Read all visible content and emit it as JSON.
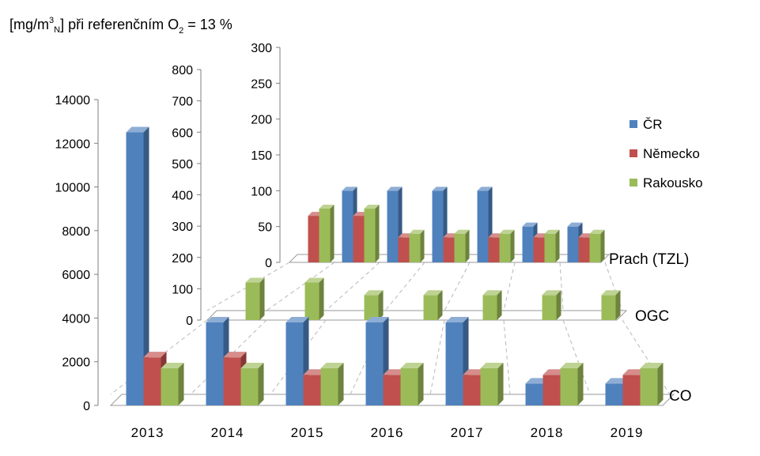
{
  "chart_data": {
    "type": "bar",
    "title": "[mg/m3N] při referenčním O2 = 13 %",
    "title_parts": {
      "pre": "[mg/m",
      "sup": "3",
      "sub": "N",
      "mid": "] při referenčním O",
      "sub2": "2",
      "post": " = 13 %"
    },
    "categories": [
      "2013",
      "2014",
      "2015",
      "2016",
      "2017",
      "2018",
      "2019"
    ],
    "legend_position": "right",
    "colors": {
      "ČR": "#4F81BD",
      "Německo": "#C0504D",
      "Rakousko": "#9BBB59"
    },
    "legend": [
      "ČR",
      "Německo",
      "Rakousko"
    ],
    "panels": [
      {
        "name": "Prach (TZL)",
        "ylim": [
          0,
          300
        ],
        "ticks": [
          "0",
          "50",
          "100",
          "150",
          "200",
          "250",
          "300"
        ],
        "series": [
          {
            "name": "ČR",
            "values": [
              null,
              100,
              100,
              100,
              100,
              50,
              50
            ]
          },
          {
            "name": "Německo",
            "values": [
              65,
              65,
              35,
              35,
              35,
              35,
              35
            ]
          },
          {
            "name": "Rakousko",
            "values": [
              75,
              75,
              40,
              40,
              40,
              40,
              40
            ]
          }
        ]
      },
      {
        "name": "OGC",
        "ylim": [
          0,
          800
        ],
        "ticks": [
          "0",
          "100",
          "200",
          "300",
          "400",
          "500",
          "600",
          "700",
          "800"
        ],
        "series": [
          {
            "name": "ČR",
            "values": [
              null,
              null,
              null,
              null,
              null,
              null,
              null
            ]
          },
          {
            "name": "Německo",
            "values": [
              null,
              null,
              null,
              null,
              null,
              null,
              null
            ]
          },
          {
            "name": "Rakousko",
            "values": [
              120,
              120,
              80,
              80,
              80,
              80,
              80
            ]
          }
        ]
      },
      {
        "name": "CO",
        "ylim": [
          0,
          14000
        ],
        "ticks": [
          "0",
          "2000",
          "4000",
          "6000",
          "8000",
          "10000",
          "12000",
          "14000"
        ],
        "series": [
          {
            "name": "ČR",
            "values": [
              12500,
              3800,
              3800,
              3800,
              3800,
              1000,
              1000
            ]
          },
          {
            "name": "Německo",
            "values": [
              2200,
              2200,
              1400,
              1400,
              1400,
              1400,
              1400
            ]
          },
          {
            "name": "Rakousko",
            "values": [
              1700,
              1700,
              1700,
              1700,
              1700,
              1700,
              1700
            ]
          }
        ]
      }
    ],
    "grid": false
  }
}
